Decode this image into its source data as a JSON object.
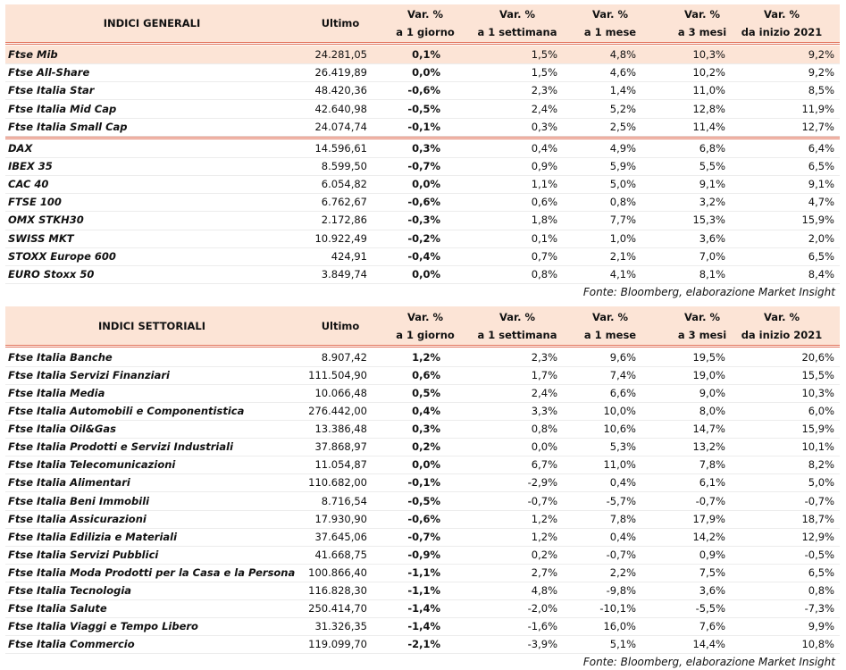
{
  "tables": [
    {
      "header": {
        "title": "INDICI GENERALI",
        "ultimo": "Ultimo",
        "columns": [
          [
            "Var. %",
            "a 1 giorno"
          ],
          [
            "Var. %",
            "a 1 settimana"
          ],
          [
            "Var. %",
            "a 1 mese"
          ],
          [
            "Var. %",
            "a 3 mesi"
          ],
          [
            "Var. %",
            "da inizio 2021"
          ]
        ]
      },
      "groups": [
        [
          [
            "Ftse Mib",
            "24.281,05",
            "0,1%",
            "1,5%",
            "4,8%",
            "10,3%",
            "9,2%"
          ],
          [
            "Ftse All-Share",
            "26.419,89",
            "0,0%",
            "1,5%",
            "4,6%",
            "10,2%",
            "9,2%"
          ],
          [
            "Ftse Italia Star",
            "48.420,36",
            "-0,6%",
            "2,3%",
            "1,4%",
            "11,0%",
            "8,5%"
          ],
          [
            "Ftse Italia Mid Cap",
            "42.640,98",
            "-0,5%",
            "2,4%",
            "5,2%",
            "12,8%",
            "11,9%"
          ],
          [
            "Ftse Italia Small Cap",
            "24.074,74",
            "-0,1%",
            "0,3%",
            "2,5%",
            "11,4%",
            "12,7%"
          ]
        ],
        [
          [
            "DAX",
            "14.596,61",
            "0,3%",
            "0,4%",
            "4,9%",
            "6,8%",
            "6,4%"
          ],
          [
            "IBEX 35",
            "8.599,50",
            "-0,7%",
            "0,9%",
            "5,9%",
            "5,5%",
            "6,5%"
          ],
          [
            "CAC 40",
            "6.054,82",
            "0,0%",
            "1,1%",
            "5,0%",
            "9,1%",
            "9,1%"
          ],
          [
            "FTSE 100",
            "6.762,67",
            "-0,6%",
            "0,6%",
            "0,8%",
            "3,2%",
            "4,7%"
          ],
          [
            "OMX STKH30",
            "2.172,86",
            "-0,3%",
            "1,8%",
            "7,7%",
            "15,3%",
            "15,9%"
          ],
          [
            "SWISS MKT",
            "10.922,49",
            "-0,2%",
            "0,1%",
            "1,0%",
            "3,6%",
            "2,0%"
          ],
          [
            "STOXX Europe 600",
            "424,91",
            "-0,4%",
            "0,7%",
            "2,1%",
            "7,0%",
            "6,5%"
          ],
          [
            "EURO Stoxx 50",
            "3.849,74",
            "0,0%",
            "0,8%",
            "4,1%",
            "8,1%",
            "8,4%"
          ]
        ]
      ],
      "source": "Fonte: Bloomberg, elaborazione Market Insight"
    },
    {
      "header": {
        "title": "INDICI SETTORIALI",
        "ultimo": "Ultimo",
        "columns": [
          [
            "Var. %",
            "a 1 giorno"
          ],
          [
            "Var. %",
            "a 1 settimana"
          ],
          [
            "Var. %",
            "a 1 mese"
          ],
          [
            "Var. %",
            "a 3 mesi"
          ],
          [
            "Var. %",
            "da inizio 2021"
          ]
        ]
      },
      "groups": [
        [
          [
            "Ftse Italia Banche",
            "8.907,42",
            "1,2%",
            "2,3%",
            "9,6%",
            "19,5%",
            "20,6%"
          ],
          [
            "Ftse Italia Servizi Finanziari",
            "111.504,90",
            "0,6%",
            "1,7%",
            "7,4%",
            "19,0%",
            "15,5%"
          ],
          [
            "Ftse Italia Media",
            "10.066,48",
            "0,5%",
            "2,4%",
            "6,6%",
            "9,0%",
            "10,3%"
          ],
          [
            "Ftse Italia Automobili e Componentistica",
            "276.442,00",
            "0,4%",
            "3,3%",
            "10,0%",
            "8,0%",
            "6,0%"
          ],
          [
            "Ftse Italia Oil&Gas",
            "13.386,48",
            "0,3%",
            "0,8%",
            "10,6%",
            "14,7%",
            "15,9%"
          ],
          [
            "Ftse Italia Prodotti e Servizi Industriali",
            "37.868,97",
            "0,2%",
            "0,0%",
            "5,3%",
            "13,2%",
            "10,1%"
          ],
          [
            "Ftse Italia Telecomunicazioni",
            "11.054,87",
            "0,0%",
            "6,7%",
            "11,0%",
            "7,8%",
            "8,2%"
          ],
          [
            "Ftse Italia Alimentari",
            "110.682,00",
            "-0,1%",
            "-2,9%",
            "0,4%",
            "6,1%",
            "5,0%"
          ],
          [
            "Ftse Italia Beni Immobili",
            "8.716,54",
            "-0,5%",
            "-0,7%",
            "-5,7%",
            "-0,7%",
            "-0,7%"
          ],
          [
            "Ftse Italia Assicurazioni",
            "17.930,90",
            "-0,6%",
            "1,2%",
            "7,8%",
            "17,9%",
            "18,7%"
          ],
          [
            "Ftse Italia Edilizia e Materiali",
            "37.645,06",
            "-0,7%",
            "1,2%",
            "0,4%",
            "14,2%",
            "12,9%"
          ],
          [
            "Ftse Italia Servizi Pubblici",
            "41.668,75",
            "-0,9%",
            "0,2%",
            "-0,7%",
            "0,9%",
            "-0,5%"
          ],
          [
            "Ftse Italia Moda Prodotti per la Casa e la Persona",
            "100.866,40",
            "-1,1%",
            "2,7%",
            "2,2%",
            "7,5%",
            "6,5%"
          ],
          [
            "Ftse Italia Tecnologia",
            "116.828,30",
            "-1,1%",
            "4,8%",
            "-9,8%",
            "3,6%",
            "0,8%"
          ],
          [
            "Ftse Italia Salute",
            "250.414,70",
            "-1,4%",
            "-2,0%",
            "-10,1%",
            "-5,5%",
            "-7,3%"
          ],
          [
            "Ftse Italia Viaggi e Tempo Libero",
            "31.326,35",
            "-1,4%",
            "-1,6%",
            "16,0%",
            "7,6%",
            "9,9%"
          ],
          [
            "Ftse Italia Commercio",
            "119.099,70",
            "-2,1%",
            "-3,9%",
            "5,1%",
            "14,4%",
            "10,8%"
          ]
        ]
      ],
      "source": "Fonte: Bloomberg, elaborazione Market Insight"
    }
  ]
}
